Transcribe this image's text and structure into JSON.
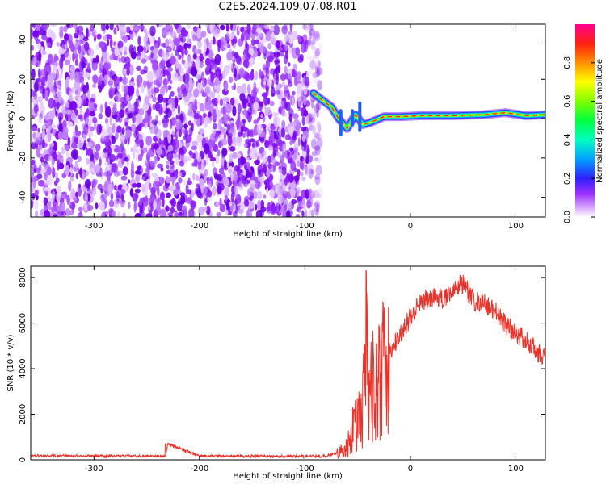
{
  "title": "C2E5.2024.109.07.08.R01",
  "chart_data": [
    {
      "type": "heatmap",
      "xlabel": "Height of straight line (km)",
      "ylabel": "Frequency (Hz)",
      "xlim": [
        -360,
        128
      ],
      "ylim": [
        -50,
        48
      ],
      "xticks": [
        -300,
        -200,
        -100,
        0,
        100
      ],
      "yticks": [
        -40,
        -20,
        0,
        20,
        40
      ],
      "noise_region_x": [
        -360,
        -90
      ],
      "signal_track": [
        {
          "x": -92,
          "y": 13
        },
        {
          "x": -85,
          "y": 10
        },
        {
          "x": -75,
          "y": 6
        },
        {
          "x": -68,
          "y": 0
        },
        {
          "x": -60,
          "y": -5
        },
        {
          "x": -52,
          "y": 2
        },
        {
          "x": -45,
          "y": -3
        },
        {
          "x": -38,
          "y": -2
        },
        {
          "x": -25,
          "y": 1
        },
        {
          "x": -10,
          "y": 1
        },
        {
          "x": 10,
          "y": 1.5
        },
        {
          "x": 40,
          "y": 1.5
        },
        {
          "x": 70,
          "y": 2
        },
        {
          "x": 90,
          "y": 3
        },
        {
          "x": 110,
          "y": 1.5
        },
        {
          "x": 128,
          "y": 2
        }
      ],
      "colorbar": {
        "label": "Normalized spectral amplitude",
        "range": [
          0,
          1
        ],
        "ticks": [
          0.0,
          0.2,
          0.4,
          0.6,
          0.8
        ]
      },
      "grid": false
    },
    {
      "type": "line",
      "xlabel": "Height of straight line (km)",
      "ylabel": "SNR (10 * v/v)",
      "xlim": [
        -360,
        128
      ],
      "ylim": [
        0,
        8500
      ],
      "xticks": [
        -300,
        -200,
        -100,
        0,
        100
      ],
      "yticks": [
        0,
        2000,
        4000,
        6000,
        8000
      ],
      "color": "#e8332b",
      "series": [
        {
          "x": [
            -360,
            -300,
            -232,
            -230,
            -200,
            -150,
            -100,
            -80,
            -70,
            -60,
            -50,
            -45,
            -42,
            -40,
            -35,
            -30,
            -20,
            -10,
            0,
            10,
            20,
            30,
            40,
            50,
            60,
            70,
            80,
            90,
            100,
            110,
            120,
            128
          ],
          "y": [
            180,
            170,
            160,
            700,
            170,
            160,
            150,
            160,
            300,
            700,
            2200,
            3200,
            8300,
            4000,
            4200,
            5000,
            4800,
            5500,
            6300,
            7000,
            7200,
            7100,
            7500,
            7800,
            7000,
            6900,
            6600,
            6000,
            5600,
            5300,
            4800,
            4500
          ]
        }
      ],
      "grid": false
    }
  ]
}
